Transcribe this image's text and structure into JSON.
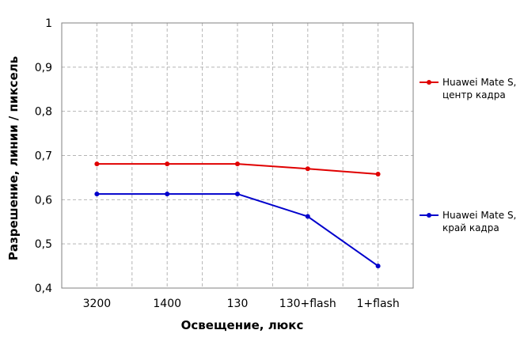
{
  "chart_data": {
    "type": "line",
    "categories": [
      "3200",
      "1400",
      "130",
      "130+flash",
      "1+flash"
    ],
    "xlabel": "Освещение,  люкс",
    "ylabel": "Разрешение,  линии  / пиксель",
    "ylim": [
      0.4,
      1.0
    ],
    "yticks": [
      "0,4",
      "0,5",
      "0,6",
      "0,7",
      "0,8",
      "0,9",
      "1"
    ],
    "grid": true,
    "legend_position": "right",
    "series": [
      {
        "name_lines": [
          "Huawei Mate S,",
          "центр кадра"
        ],
        "color": "#e00000",
        "values": [
          0.681,
          0.681,
          0.681,
          0.67,
          0.658
        ]
      },
      {
        "name_lines": [
          "Huawei Mate S,",
          "край кадра"
        ],
        "color": "#0000cc",
        "values": [
          0.613,
          0.613,
          0.613,
          0.562,
          0.45
        ]
      }
    ]
  }
}
